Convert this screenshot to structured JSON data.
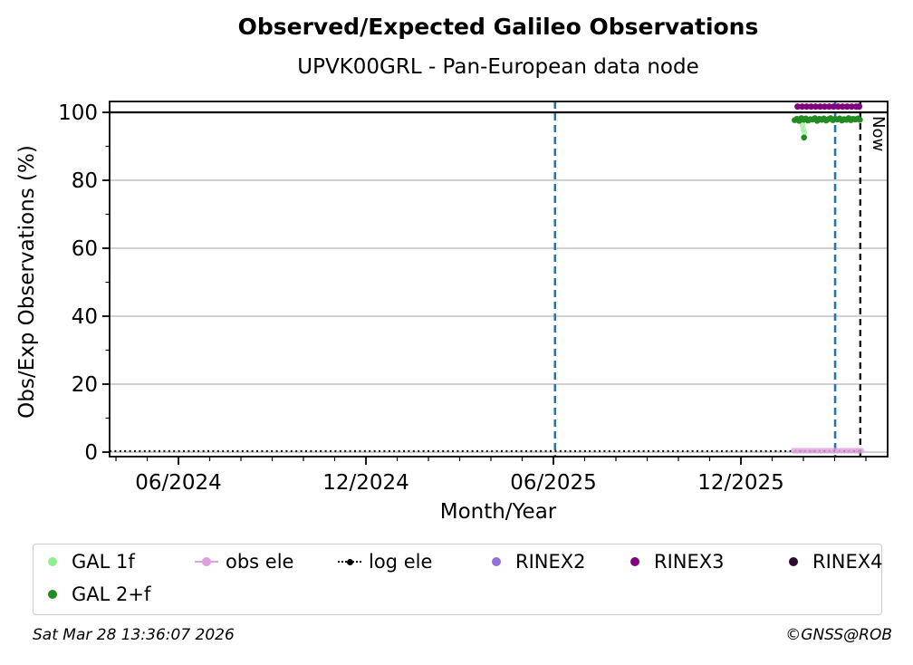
{
  "figure": {
    "title": "Observed/Expected Galileo Observations",
    "subtitle": "UPVK00GRL - Pan-European data node",
    "footer_left": "Sat Mar 28 13:36:07 2026",
    "footer_right": "©GNSS@ROB"
  },
  "chart_data": {
    "type": "scatter",
    "title": "Observed/Expected Galileo Observations",
    "subtitle": "UPVK00GRL - Pan-European data node",
    "xlabel": "Month/Year",
    "ylabel": "Obs/Exp Observations (%)",
    "xlim": [
      2024.233,
      2026.308
    ],
    "ylim": [
      -1.33,
      103.2
    ],
    "grid": "horizontal-only",
    "grid_color": "#b3b3b3",
    "legend_position": "below",
    "x_major_ticks": [
      {
        "value": 2024.4167,
        "label": "06/2024"
      },
      {
        "value": 2024.9167,
        "label": "12/2024"
      },
      {
        "value": 2025.4167,
        "label": "06/2025"
      },
      {
        "value": 2025.9167,
        "label": "12/2025"
      }
    ],
    "yticks": [
      {
        "value": 0,
        "label": "0"
      },
      {
        "value": 20,
        "label": "20"
      },
      {
        "value": 40,
        "label": "40"
      },
      {
        "value": 60,
        "label": "60"
      },
      {
        "value": 80,
        "label": "80"
      },
      {
        "value": 100,
        "label": "100"
      }
    ],
    "y_minor_ticks": [
      10,
      30,
      50,
      70,
      90
    ],
    "ref_line": {
      "y": 100,
      "color": "#000000",
      "width": 2.2
    },
    "vlines": [
      {
        "x": 2025.421,
        "color": "#1f77b4",
        "dash": "8 5",
        "width": 2.6
      },
      {
        "x": 2026.168,
        "color": "#1f77b4",
        "dash": "8 5",
        "width": 2.6
      },
      {
        "x": 2026.235,
        "color": "#000000",
        "dash": "7 5",
        "width": 2.2,
        "label": "Now"
      }
    ],
    "annotations": [
      {
        "text": "Now",
        "attach_to_vline": 2,
        "rotation": 90
      }
    ],
    "series": [
      {
        "name": "log ele",
        "color": "#000000",
        "style": "dotted-line",
        "width": 2,
        "points": [
          [
            2024.233,
            0.3
          ],
          [
            2026.235,
            0.3
          ]
        ]
      },
      {
        "name": "obs ele",
        "color": "#dda0dd",
        "style": "dots",
        "marker_r": 3.4,
        "opacity": 0.7,
        "points": [
          [
            2026.058,
            0.4
          ],
          [
            2026.067,
            0.4
          ],
          [
            2026.076,
            0.4
          ],
          [
            2026.085,
            0.4
          ],
          [
            2026.094,
            0.4
          ],
          [
            2026.103,
            0.4
          ],
          [
            2026.112,
            0.4
          ],
          [
            2026.121,
            0.4
          ],
          [
            2026.13,
            0.4
          ],
          [
            2026.139,
            0.4
          ],
          [
            2026.148,
            0.4
          ],
          [
            2026.157,
            0.4
          ],
          [
            2026.166,
            0.4
          ],
          [
            2026.175,
            0.4
          ],
          [
            2026.184,
            0.4
          ],
          [
            2026.193,
            0.4
          ],
          [
            2026.202,
            0.4
          ],
          [
            2026.211,
            0.4
          ],
          [
            2026.22,
            0.4
          ],
          [
            2026.229,
            0.4
          ],
          [
            2026.238,
            0.4
          ]
        ]
      },
      {
        "name": "GAL 1f",
        "color": "#90ee90",
        "style": "dots",
        "marker_r": 3.2,
        "opacity": 0.65,
        "points": [
          [
            2026.081,
            96.2
          ],
          [
            2026.083,
            95.0
          ],
          [
            2026.086,
            94.1
          ]
        ]
      },
      {
        "name": "GAL 2+f",
        "color": "#228b22",
        "style": "dots",
        "marker_r": 3.3,
        "opacity": 1,
        "points": [
          [
            2026.06,
            97.7
          ],
          [
            2026.066,
            98.1
          ],
          [
            2026.072,
            97.5
          ],
          [
            2026.078,
            98.3
          ],
          [
            2026.084,
            97.8
          ],
          [
            2026.09,
            98.2
          ],
          [
            2026.096,
            97.6
          ],
          [
            2026.102,
            98.0
          ],
          [
            2026.108,
            97.9
          ],
          [
            2026.114,
            98.3
          ],
          [
            2026.12,
            97.5
          ],
          [
            2026.126,
            98.1
          ],
          [
            2026.132,
            97.8
          ],
          [
            2026.138,
            98.2
          ],
          [
            2026.144,
            97.6
          ],
          [
            2026.15,
            98.0
          ],
          [
            2026.156,
            98.3
          ],
          [
            2026.162,
            97.7
          ],
          [
            2026.168,
            98.1
          ],
          [
            2026.174,
            97.9
          ],
          [
            2026.18,
            98.2
          ],
          [
            2026.186,
            97.6
          ],
          [
            2026.192,
            98.0
          ],
          [
            2026.198,
            97.8
          ],
          [
            2026.204,
            98.3
          ],
          [
            2026.21,
            97.7
          ],
          [
            2026.216,
            98.1
          ],
          [
            2026.222,
            97.9
          ],
          [
            2026.228,
            98.2
          ],
          [
            2026.234,
            97.8
          ],
          [
            2026.085,
            92.6
          ]
        ]
      },
      {
        "name": "RINEX3",
        "color": "#800080",
        "style": "dots",
        "marker_r": 3.5,
        "opacity": 1,
        "points": [
          [
            2026.068,
            101.7
          ],
          [
            2026.08,
            101.7
          ],
          [
            2026.092,
            101.7
          ],
          [
            2026.104,
            101.7
          ],
          [
            2026.116,
            101.7
          ],
          [
            2026.128,
            101.7
          ],
          [
            2026.14,
            101.7
          ],
          [
            2026.152,
            101.7
          ],
          [
            2026.164,
            101.7
          ],
          [
            2026.176,
            101.7
          ],
          [
            2026.188,
            101.7
          ],
          [
            2026.2,
            101.7
          ],
          [
            2026.212,
            101.7
          ],
          [
            2026.224,
            101.7
          ],
          [
            2026.232,
            101.7
          ]
        ]
      }
    ]
  },
  "legend": {
    "items": [
      {
        "label": "GAL 1f",
        "color": "#90ee90",
        "marker": "dot"
      },
      {
        "label": "obs ele",
        "color": "#dda0dd",
        "marker": "line-dot"
      },
      {
        "label": "log ele",
        "color": "#000000",
        "marker": "dotted-line-dot"
      },
      {
        "label": "RINEX2",
        "color": "#9370db",
        "marker": "dot"
      },
      {
        "label": "RINEX3",
        "color": "#800080",
        "marker": "dot"
      },
      {
        "label": "RINEX4",
        "color": "#2d0a31",
        "marker": "dot"
      },
      {
        "label": "GAL 2+f",
        "color": "#228b22",
        "marker": "dot"
      }
    ]
  }
}
